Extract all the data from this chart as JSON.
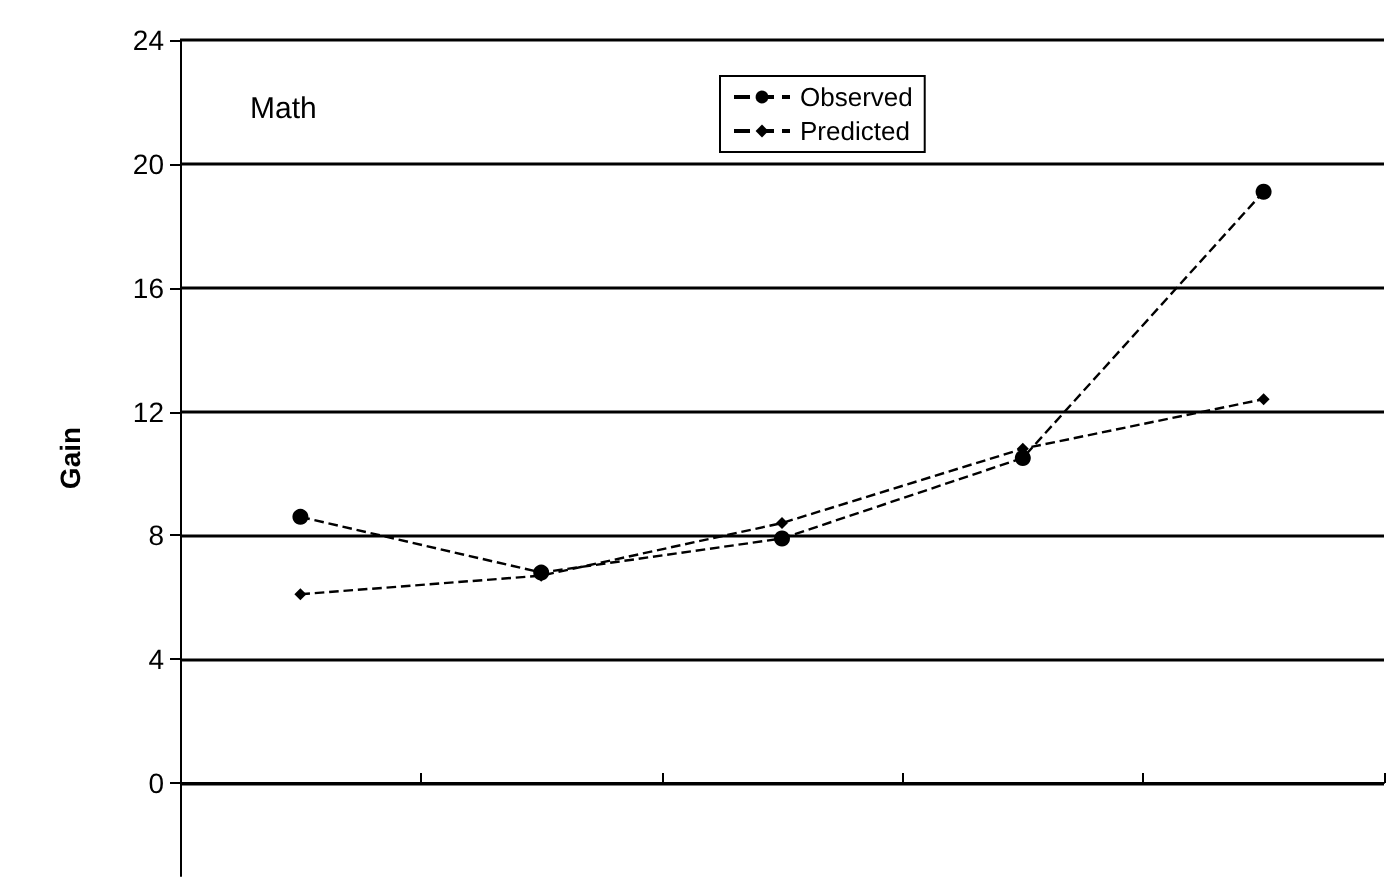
{
  "chart_data": {
    "type": "line",
    "title": "Math",
    "ylabel": "Gain",
    "categories": [
      null,
      null,
      null,
      null,
      null
    ],
    "series": [
      {
        "name": "Observed",
        "color": "#000000",
        "values": [
          8.6,
          6.8,
          7.9,
          10.5,
          19.1
        ],
        "marker": "circle"
      },
      {
        "name": "Predicted",
        "color": "#000000",
        "values": [
          6.1,
          6.7,
          8.4,
          10.8,
          12.4
        ],
        "marker": "diamond"
      }
    ],
    "ylim": [
      -3,
      24
    ],
    "yticks": [
      0,
      4,
      8,
      12,
      16,
      20,
      24
    ],
    "grid": "y",
    "legend": "top",
    "line_style": "dashed"
  }
}
